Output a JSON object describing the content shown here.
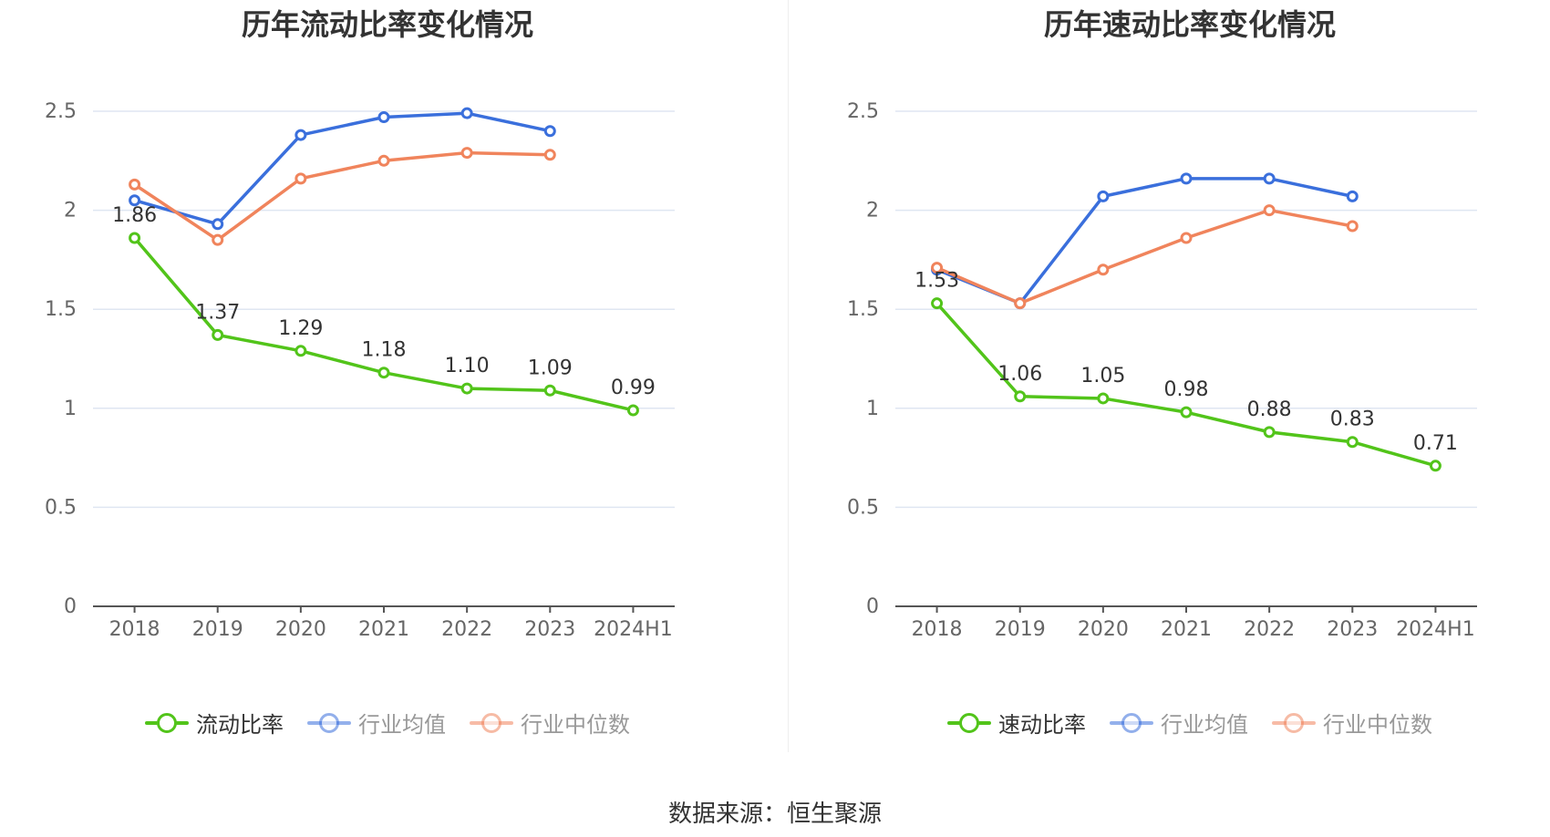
{
  "source_text": "数据来源：恒生聚源",
  "chart_data": [
    {
      "type": "line",
      "title": "历年流动比率变化情况",
      "categories": [
        "2018",
        "2019",
        "2020",
        "2021",
        "2022",
        "2023",
        "2024H1"
      ],
      "ylim": [
        0,
        2.5
      ],
      "yticks": [
        "0",
        "0.5",
        "1",
        "1.5",
        "2",
        "2.5"
      ],
      "grid": true,
      "legend_position": "bottom",
      "series": [
        {
          "name": "流动比率",
          "color": "#52c41a",
          "values": [
            1.86,
            1.37,
            1.29,
            1.18,
            1.1,
            1.09,
            0.99
          ],
          "labels": [
            "1.86",
            "1.37",
            "1.29",
            "1.18",
            "1.10",
            "1.09",
            "0.99"
          ]
        },
        {
          "name": "行业均值",
          "color": "#3a6fdc",
          "values": [
            2.05,
            1.93,
            2.38,
            2.47,
            2.49,
            2.4,
            null
          ]
        },
        {
          "name": "行业中位数",
          "color": "#f0845c",
          "values": [
            2.13,
            1.85,
            2.16,
            2.25,
            2.29,
            2.28,
            null
          ]
        }
      ]
    },
    {
      "type": "line",
      "title": "历年速动比率变化情况",
      "categories": [
        "2018",
        "2019",
        "2020",
        "2021",
        "2022",
        "2023",
        "2024H1"
      ],
      "ylim": [
        0,
        2.5
      ],
      "yticks": [
        "0",
        "0.5",
        "1",
        "1.5",
        "2",
        "2.5"
      ],
      "grid": true,
      "legend_position": "bottom",
      "series": [
        {
          "name": "速动比率",
          "color": "#52c41a",
          "values": [
            1.53,
            1.06,
            1.05,
            0.98,
            0.88,
            0.83,
            0.71
          ],
          "labels": [
            "1.53",
            "1.06",
            "1.05",
            "0.98",
            "0.88",
            "0.83",
            "0.71"
          ]
        },
        {
          "name": "行业均值",
          "color": "#3a6fdc",
          "values": [
            1.7,
            1.53,
            2.07,
            2.16,
            2.16,
            2.07,
            null
          ]
        },
        {
          "name": "行业中位数",
          "color": "#f0845c",
          "values": [
            1.71,
            1.53,
            1.7,
            1.86,
            2.0,
            1.92,
            null
          ]
        }
      ]
    }
  ]
}
